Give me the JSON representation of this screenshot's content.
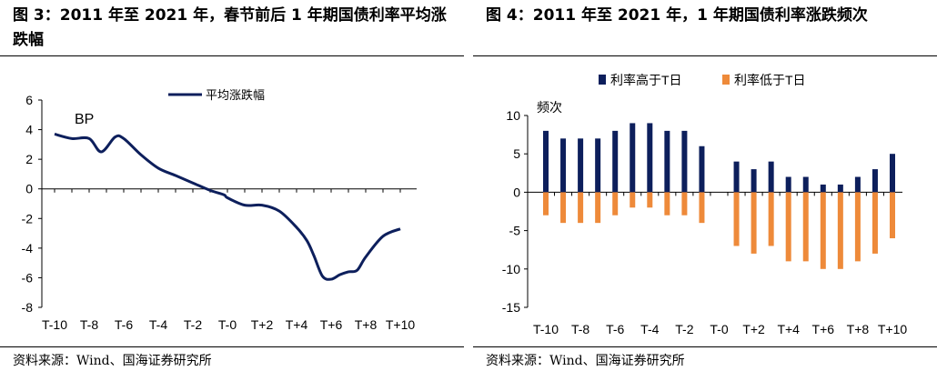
{
  "panels": [
    {
      "title": "图 3：2011 年至 2021 年，春节前后 1 年期国债利率平均涨跌幅",
      "source": "资料来源：Wind、国海证券研究所"
    },
    {
      "title": "图 4：2011 年至 2021 年，1 年期国债利率涨跌频次",
      "source": "资料来源：Wind、国海证券研究所"
    }
  ],
  "chart_data": [
    {
      "type": "line",
      "unit_label": "BP",
      "xlabel": "",
      "ylabel": "",
      "categories": [
        "T-10",
        "T-9",
        "T-8",
        "T-7",
        "T-6",
        "T-5",
        "T-4",
        "T-3",
        "T-2",
        "T-1",
        "T-0",
        "T+1",
        "T+2",
        "T+3",
        "T+4",
        "T+5",
        "T+6",
        "T+7",
        "T+8",
        "T+9",
        "T+10"
      ],
      "x_tick_labels": [
        "T-10",
        "T-8",
        "T-6",
        "T-4",
        "T-2",
        "T-0",
        "T+2",
        "T+4",
        "T+6",
        "T+8",
        "T+10"
      ],
      "series": [
        {
          "name": "平均涨跌幅",
          "color": "#0d1f5c",
          "x": [
            -10,
            -9,
            -8,
            -7.3,
            -6.5,
            -6,
            -5,
            -4,
            -3,
            -2,
            -1,
            -0.2,
            0,
            1,
            2,
            3,
            4,
            4.6,
            5,
            5.5,
            6,
            6.5,
            7,
            7.5,
            8,
            9,
            10
          ],
          "values": [
            3.7,
            3.4,
            3.4,
            2.5,
            3.5,
            3.4,
            2.3,
            1.4,
            0.9,
            0.4,
            -0.1,
            -0.4,
            -0.6,
            -1.1,
            -1.1,
            -1.5,
            -2.6,
            -3.5,
            -4.5,
            -5.9,
            -6.1,
            -5.8,
            -5.6,
            -5.5,
            -4.6,
            -3.2,
            -2.7
          ]
        }
      ],
      "ylim": [
        -8,
        6
      ],
      "yticks": [
        -8,
        -6,
        -4,
        -2,
        0,
        2,
        4,
        6
      ],
      "legend": "top-center",
      "grid": false
    },
    {
      "type": "bar",
      "unit_label": "频次",
      "xlabel": "",
      "ylabel": "",
      "categories": [
        "T-10",
        "T-9",
        "T-8",
        "T-7",
        "T-6",
        "T-5",
        "T-4",
        "T-3",
        "T-2",
        "T-1",
        "T-0",
        "T+1",
        "T+2",
        "T+3",
        "T+4",
        "T+5",
        "T+6",
        "T+7",
        "T+8",
        "T+9",
        "T+10"
      ],
      "x_tick_labels": [
        "T-10",
        "T-8",
        "T-6",
        "T-4",
        "T-2",
        "T-0",
        "T+2",
        "T+4",
        "T+6",
        "T+8",
        "T+10"
      ],
      "series": [
        {
          "name": "利率高于T日",
          "color": "#0d1f5c",
          "values": [
            8,
            7,
            7,
            7,
            8,
            9,
            9,
            8,
            8,
            6,
            0,
            4,
            3,
            4,
            2,
            2,
            1,
            1,
            2,
            3,
            5
          ]
        },
        {
          "name": "利率低于T日",
          "color": "#ee8a3a",
          "values": [
            -3,
            -4,
            -4,
            -4,
            -3,
            -2,
            -2,
            -3,
            -3,
            -4,
            0,
            -7,
            -8,
            -7,
            -9,
            -9,
            -10,
            -10,
            -9,
            -8,
            -6
          ]
        }
      ],
      "ylim": [
        -15,
        10
      ],
      "yticks": [
        -15,
        -10,
        -5,
        0,
        5,
        10
      ],
      "legend": "top",
      "grid": false
    }
  ]
}
